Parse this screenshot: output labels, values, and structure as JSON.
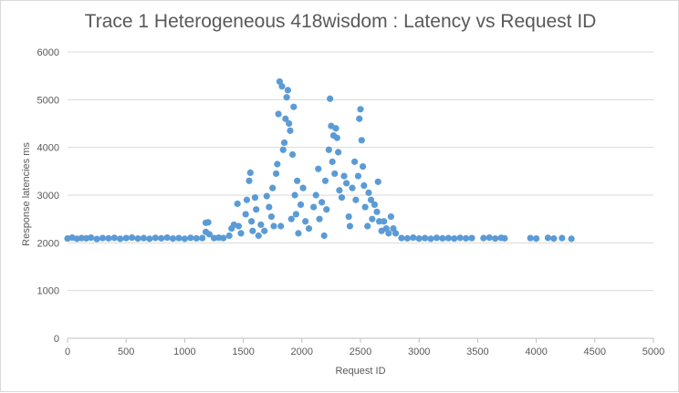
{
  "chart_data": {
    "type": "scatter",
    "title": "Trace 1 Heterogeneous 418wisdom : Latency vs Request ID",
    "xlabel": "Request ID",
    "ylabel": "Response latencies ms",
    "xlim": [
      0,
      5000
    ],
    "ylim": [
      0,
      6000
    ],
    "xticks": [
      "0",
      "500",
      "1000",
      "1500",
      "2000",
      "2500",
      "3000",
      "3500",
      "4000",
      "4500",
      "5000"
    ],
    "yticks": [
      "0",
      "1000",
      "2000",
      "3000",
      "4000",
      "5000",
      "6000"
    ],
    "grid": "horizontal",
    "legend": "none",
    "marker_color": "#5b9bd5",
    "series": [
      {
        "points": [
          [
            0,
            2090
          ],
          [
            40,
            2110
          ],
          [
            80,
            2085
          ],
          [
            120,
            2100
          ],
          [
            160,
            2095
          ],
          [
            200,
            2110
          ],
          [
            250,
            2080
          ],
          [
            300,
            2100
          ],
          [
            350,
            2095
          ],
          [
            400,
            2105
          ],
          [
            450,
            2085
          ],
          [
            500,
            2100
          ],
          [
            550,
            2110
          ],
          [
            600,
            2090
          ],
          [
            650,
            2100
          ],
          [
            700,
            2085
          ],
          [
            750,
            2105
          ],
          [
            800,
            2095
          ],
          [
            850,
            2110
          ],
          [
            900,
            2090
          ],
          [
            950,
            2100
          ],
          [
            1000,
            2085
          ],
          [
            1050,
            2105
          ],
          [
            1100,
            2095
          ],
          [
            1150,
            2100
          ],
          [
            1180,
            2230
          ],
          [
            1200,
            2430
          ],
          [
            1180,
            2420
          ],
          [
            1210,
            2180
          ],
          [
            1250,
            2100
          ],
          [
            1290,
            2110
          ],
          [
            1330,
            2100
          ],
          [
            1380,
            2150
          ],
          [
            1400,
            2300
          ],
          [
            1420,
            2380
          ],
          [
            1450,
            2820
          ],
          [
            1460,
            2350
          ],
          [
            1480,
            2200
          ],
          [
            1520,
            2600
          ],
          [
            1530,
            2900
          ],
          [
            1550,
            3300
          ],
          [
            1560,
            3470
          ],
          [
            1570,
            2450
          ],
          [
            1580,
            2250
          ],
          [
            1600,
            2950
          ],
          [
            1610,
            2700
          ],
          [
            1630,
            2150
          ],
          [
            1650,
            2380
          ],
          [
            1680,
            2250
          ],
          [
            1700,
            2980
          ],
          [
            1720,
            2750
          ],
          [
            1740,
            2550
          ],
          [
            1750,
            3150
          ],
          [
            1760,
            2350
          ],
          [
            1780,
            3450
          ],
          [
            1790,
            3650
          ],
          [
            1800,
            4700
          ],
          [
            1810,
            5380
          ],
          [
            1820,
            2350
          ],
          [
            1830,
            5280
          ],
          [
            1840,
            3950
          ],
          [
            1850,
            4100
          ],
          [
            1860,
            4600
          ],
          [
            1870,
            5050
          ],
          [
            1880,
            5200
          ],
          [
            1890,
            4500
          ],
          [
            1900,
            4350
          ],
          [
            1910,
            2500
          ],
          [
            1920,
            3850
          ],
          [
            1930,
            4850
          ],
          [
            1940,
            3000
          ],
          [
            1950,
            2600
          ],
          [
            1960,
            3300
          ],
          [
            1970,
            2200
          ],
          [
            1990,
            2800
          ],
          [
            2010,
            3150
          ],
          [
            2030,
            2450
          ],
          [
            2060,
            2300
          ],
          [
            2100,
            2750
          ],
          [
            2120,
            3000
          ],
          [
            2140,
            3550
          ],
          [
            2150,
            2500
          ],
          [
            2170,
            2850
          ],
          [
            2190,
            2150
          ],
          [
            2200,
            3300
          ],
          [
            2210,
            2700
          ],
          [
            2230,
            3950
          ],
          [
            2240,
            5020
          ],
          [
            2250,
            4450
          ],
          [
            2260,
            3700
          ],
          [
            2270,
            4250
          ],
          [
            2280,
            3450
          ],
          [
            2290,
            4400
          ],
          [
            2300,
            4200
          ],
          [
            2310,
            3900
          ],
          [
            2320,
            3100
          ],
          [
            2340,
            2950
          ],
          [
            2360,
            3400
          ],
          [
            2380,
            3250
          ],
          [
            2400,
            2550
          ],
          [
            2410,
            2350
          ],
          [
            2430,
            3150
          ],
          [
            2450,
            3700
          ],
          [
            2460,
            2900
          ],
          [
            2480,
            3400
          ],
          [
            2490,
            4600
          ],
          [
            2500,
            4800
          ],
          [
            2510,
            4150
          ],
          [
            2520,
            3600
          ],
          [
            2530,
            3200
          ],
          [
            2540,
            2750
          ],
          [
            2560,
            2350
          ],
          [
            2570,
            3050
          ],
          [
            2590,
            2900
          ],
          [
            2600,
            2500
          ],
          [
            2620,
            2800
          ],
          [
            2640,
            2650
          ],
          [
            2650,
            3280
          ],
          [
            2660,
            2450
          ],
          [
            2680,
            2250
          ],
          [
            2700,
            2450
          ],
          [
            2720,
            2300
          ],
          [
            2740,
            2200
          ],
          [
            2760,
            2550
          ],
          [
            2780,
            2300
          ],
          [
            2800,
            2200
          ],
          [
            2850,
            2100
          ],
          [
            2900,
            2095
          ],
          [
            2950,
            2110
          ],
          [
            3000,
            2090
          ],
          [
            3050,
            2100
          ],
          [
            3100,
            2085
          ],
          [
            3150,
            2105
          ],
          [
            3200,
            2095
          ],
          [
            3250,
            2100
          ],
          [
            3300,
            2090
          ],
          [
            3350,
            2105
          ],
          [
            3400,
            2095
          ],
          [
            3450,
            2100
          ],
          [
            3550,
            2100
          ],
          [
            3600,
            2110
          ],
          [
            3650,
            2090
          ],
          [
            3700,
            2105
          ],
          [
            3730,
            2095
          ],
          [
            3950,
            2100
          ],
          [
            4000,
            2090
          ],
          [
            4100,
            2105
          ],
          [
            4150,
            2090
          ],
          [
            4220,
            2100
          ],
          [
            4300,
            2085
          ]
        ]
      }
    ]
  }
}
